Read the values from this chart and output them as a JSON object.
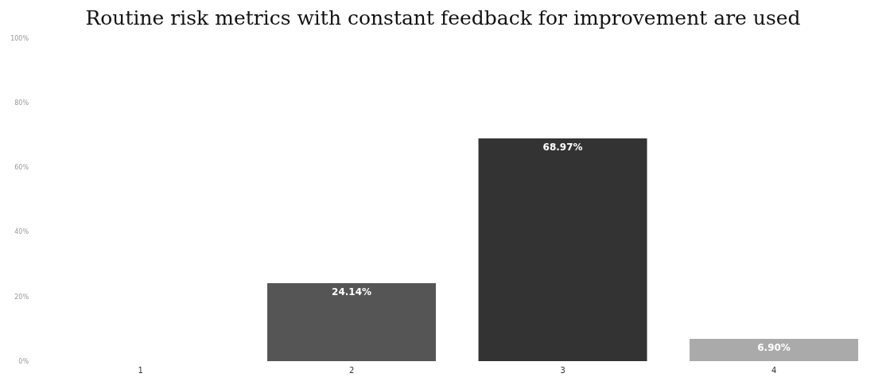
{
  "chart_data": {
    "type": "bar",
    "title": "Routine risk metrics with constant feedback for improvement are used",
    "categories": [
      "1",
      "2",
      "3",
      "4"
    ],
    "values": [
      null,
      24.14,
      68.97,
      6.9
    ],
    "colors": [
      null,
      "#555555",
      "#333333",
      "#aaaaaa"
    ],
    "value_labels": [
      null,
      "24.14%",
      "68.97%",
      "6.90%"
    ],
    "ylim": [
      0,
      100
    ],
    "yticks": [
      {
        "value": 0,
        "label": "0%"
      },
      {
        "value": 20,
        "label": "20%"
      },
      {
        "value": 40,
        "label": "40%"
      },
      {
        "value": 60,
        "label": "60%"
      },
      {
        "value": 80,
        "label": "80%"
      },
      {
        "value": 100,
        "label": "100%"
      }
    ],
    "grid": false
  }
}
